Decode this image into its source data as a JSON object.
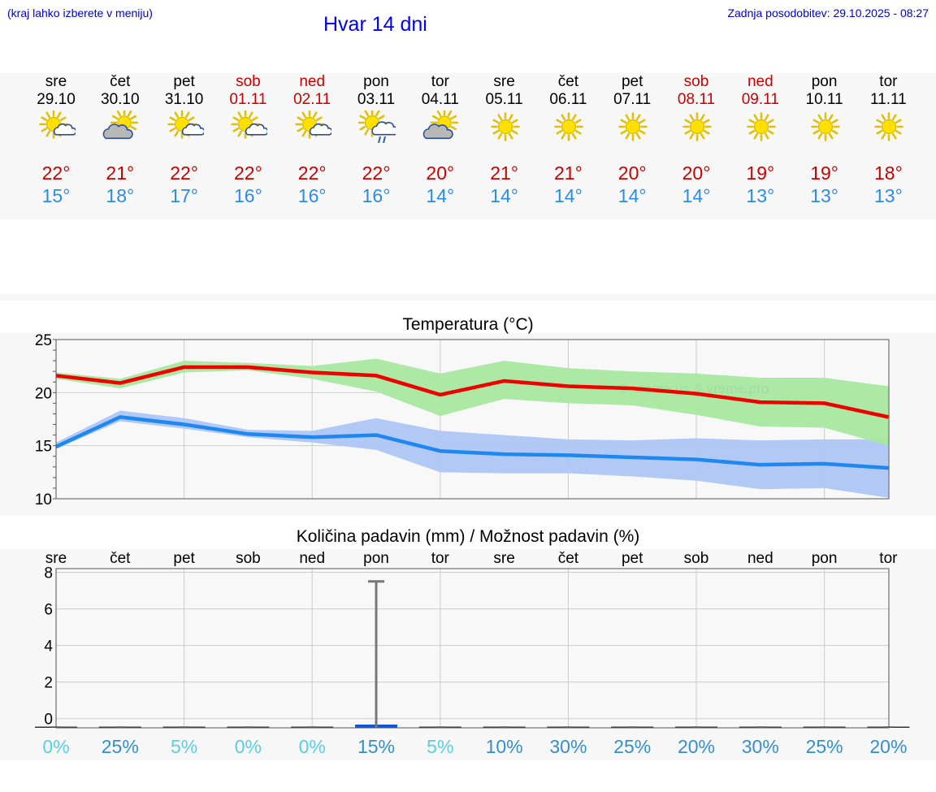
{
  "header": {
    "hint": "(kraj lahko izberete v meniju)",
    "title": "Hvar 14 dni",
    "updated": "Zadnja posodobitev: 29.10.2025 - 08:27"
  },
  "days": [
    {
      "name": "sre",
      "date": "29.10",
      "weekend": false,
      "icon": "sun-cloud-icon",
      "max": "22°",
      "min": "15°"
    },
    {
      "name": "čet",
      "date": "30.10",
      "weekend": false,
      "icon": "cloud-sun-icon",
      "max": "21°",
      "min": "18°"
    },
    {
      "name": "pet",
      "date": "31.10",
      "weekend": false,
      "icon": "sun-cloud-icon",
      "max": "22°",
      "min": "17°"
    },
    {
      "name": "sob",
      "date": "01.11",
      "weekend": true,
      "icon": "sun-cloud-icon",
      "max": "22°",
      "min": "16°"
    },
    {
      "name": "ned",
      "date": "02.11",
      "weekend": true,
      "icon": "sun-cloud-icon",
      "max": "22°",
      "min": "16°"
    },
    {
      "name": "pon",
      "date": "03.11",
      "weekend": false,
      "icon": "sun-rain-icon",
      "max": "22°",
      "min": "16°"
    },
    {
      "name": "tor",
      "date": "04.11",
      "weekend": false,
      "icon": "cloud-sun-icon",
      "max": "20°",
      "min": "14°"
    },
    {
      "name": "sre",
      "date": "05.11",
      "weekend": false,
      "icon": "sun-icon",
      "max": "21°",
      "min": "14°"
    },
    {
      "name": "čet",
      "date": "06.11",
      "weekend": false,
      "icon": "sun-icon",
      "max": "21°",
      "min": "14°"
    },
    {
      "name": "pet",
      "date": "07.11",
      "weekend": false,
      "icon": "sun-icon",
      "max": "20°",
      "min": "14°"
    },
    {
      "name": "sob",
      "date": "08.11",
      "weekend": true,
      "icon": "sun-icon",
      "max": "20°",
      "min": "14°"
    },
    {
      "name": "ned",
      "date": "09.11",
      "weekend": true,
      "icon": "sun-icon",
      "max": "19°",
      "min": "13°"
    },
    {
      "name": "pon",
      "date": "10.11",
      "weekend": false,
      "icon": "sun-icon",
      "max": "19°",
      "min": "13°"
    },
    {
      "name": "tor",
      "date": "11.11",
      "weekend": false,
      "icon": "sun-icon",
      "max": "18°",
      "min": "13°"
    }
  ],
  "colors": {
    "max": "#ee0000",
    "min": "#1e88f0",
    "max_band": "#a8e8a0",
    "min_band": "#aec6f4",
    "weekend": "#cc0000",
    "precip_bar": "#1155dd"
  },
  "chart_data": [
    {
      "type": "line",
      "title": "Temperatura (°C)",
      "watermark": "© vreme.us & vreme.pro",
      "ylim": [
        10,
        25
      ],
      "yticks": [
        10,
        15,
        20,
        25
      ],
      "x": [
        0,
        1,
        2,
        3,
        4,
        5,
        6,
        7,
        8,
        9,
        10,
        11,
        12,
        13
      ],
      "series": [
        {
          "name": "max",
          "values": [
            21.6,
            20.9,
            22.4,
            22.4,
            21.9,
            21.6,
            19.8,
            21.1,
            20.6,
            20.4,
            19.9,
            19.1,
            19.0,
            17.7
          ],
          "band_upper": [
            21.9,
            21.3,
            23.0,
            22.8,
            22.5,
            23.2,
            21.8,
            23.0,
            22.3,
            22.0,
            21.8,
            21.4,
            21.4,
            20.6
          ],
          "band_lower": [
            21.3,
            20.4,
            21.9,
            22.1,
            21.3,
            20.1,
            17.8,
            19.4,
            19.0,
            18.8,
            17.9,
            16.8,
            16.7,
            15.0
          ]
        },
        {
          "name": "min",
          "values": [
            14.9,
            17.7,
            17.0,
            16.1,
            15.8,
            16.0,
            14.5,
            14.2,
            14.1,
            13.9,
            13.7,
            13.2,
            13.3,
            12.9
          ],
          "band_upper": [
            15.3,
            18.3,
            17.6,
            16.5,
            16.4,
            17.6,
            16.4,
            16.0,
            15.6,
            15.5,
            15.7,
            15.5,
            15.6,
            15.6
          ],
          "band_lower": [
            14.7,
            17.3,
            16.6,
            15.8,
            15.3,
            14.6,
            12.5,
            12.4,
            12.4,
            12.1,
            11.7,
            10.9,
            11.0,
            10.1
          ]
        }
      ]
    },
    {
      "type": "bar",
      "title": "Količina padavin (mm) / Možnost padavin (%)",
      "ylim": [
        -0.5,
        8.2
      ],
      "yticks": [
        0,
        2,
        4,
        6,
        8
      ],
      "categories": [
        "sre",
        "čet",
        "pet",
        "sob",
        "ned",
        "pon",
        "tor",
        "sre",
        "čet",
        "pet",
        "sob",
        "ned",
        "pon",
        "tor"
      ],
      "values": [
        0,
        0,
        0,
        0,
        0,
        0.1,
        0,
        0,
        0,
        0,
        0,
        0,
        0,
        0
      ],
      "error_upper": [
        0,
        0,
        0,
        0,
        0,
        7.5,
        0,
        0,
        0,
        0,
        0,
        0,
        0,
        0
      ],
      "probability": [
        "0%",
        "25%",
        "5%",
        "0%",
        "0%",
        "15%",
        "5%",
        "10%",
        "30%",
        "25%",
        "20%",
        "30%",
        "25%",
        "20%"
      ],
      "probability_values": [
        0,
        25,
        5,
        0,
        0,
        15,
        5,
        10,
        30,
        25,
        20,
        30,
        25,
        20
      ]
    }
  ]
}
